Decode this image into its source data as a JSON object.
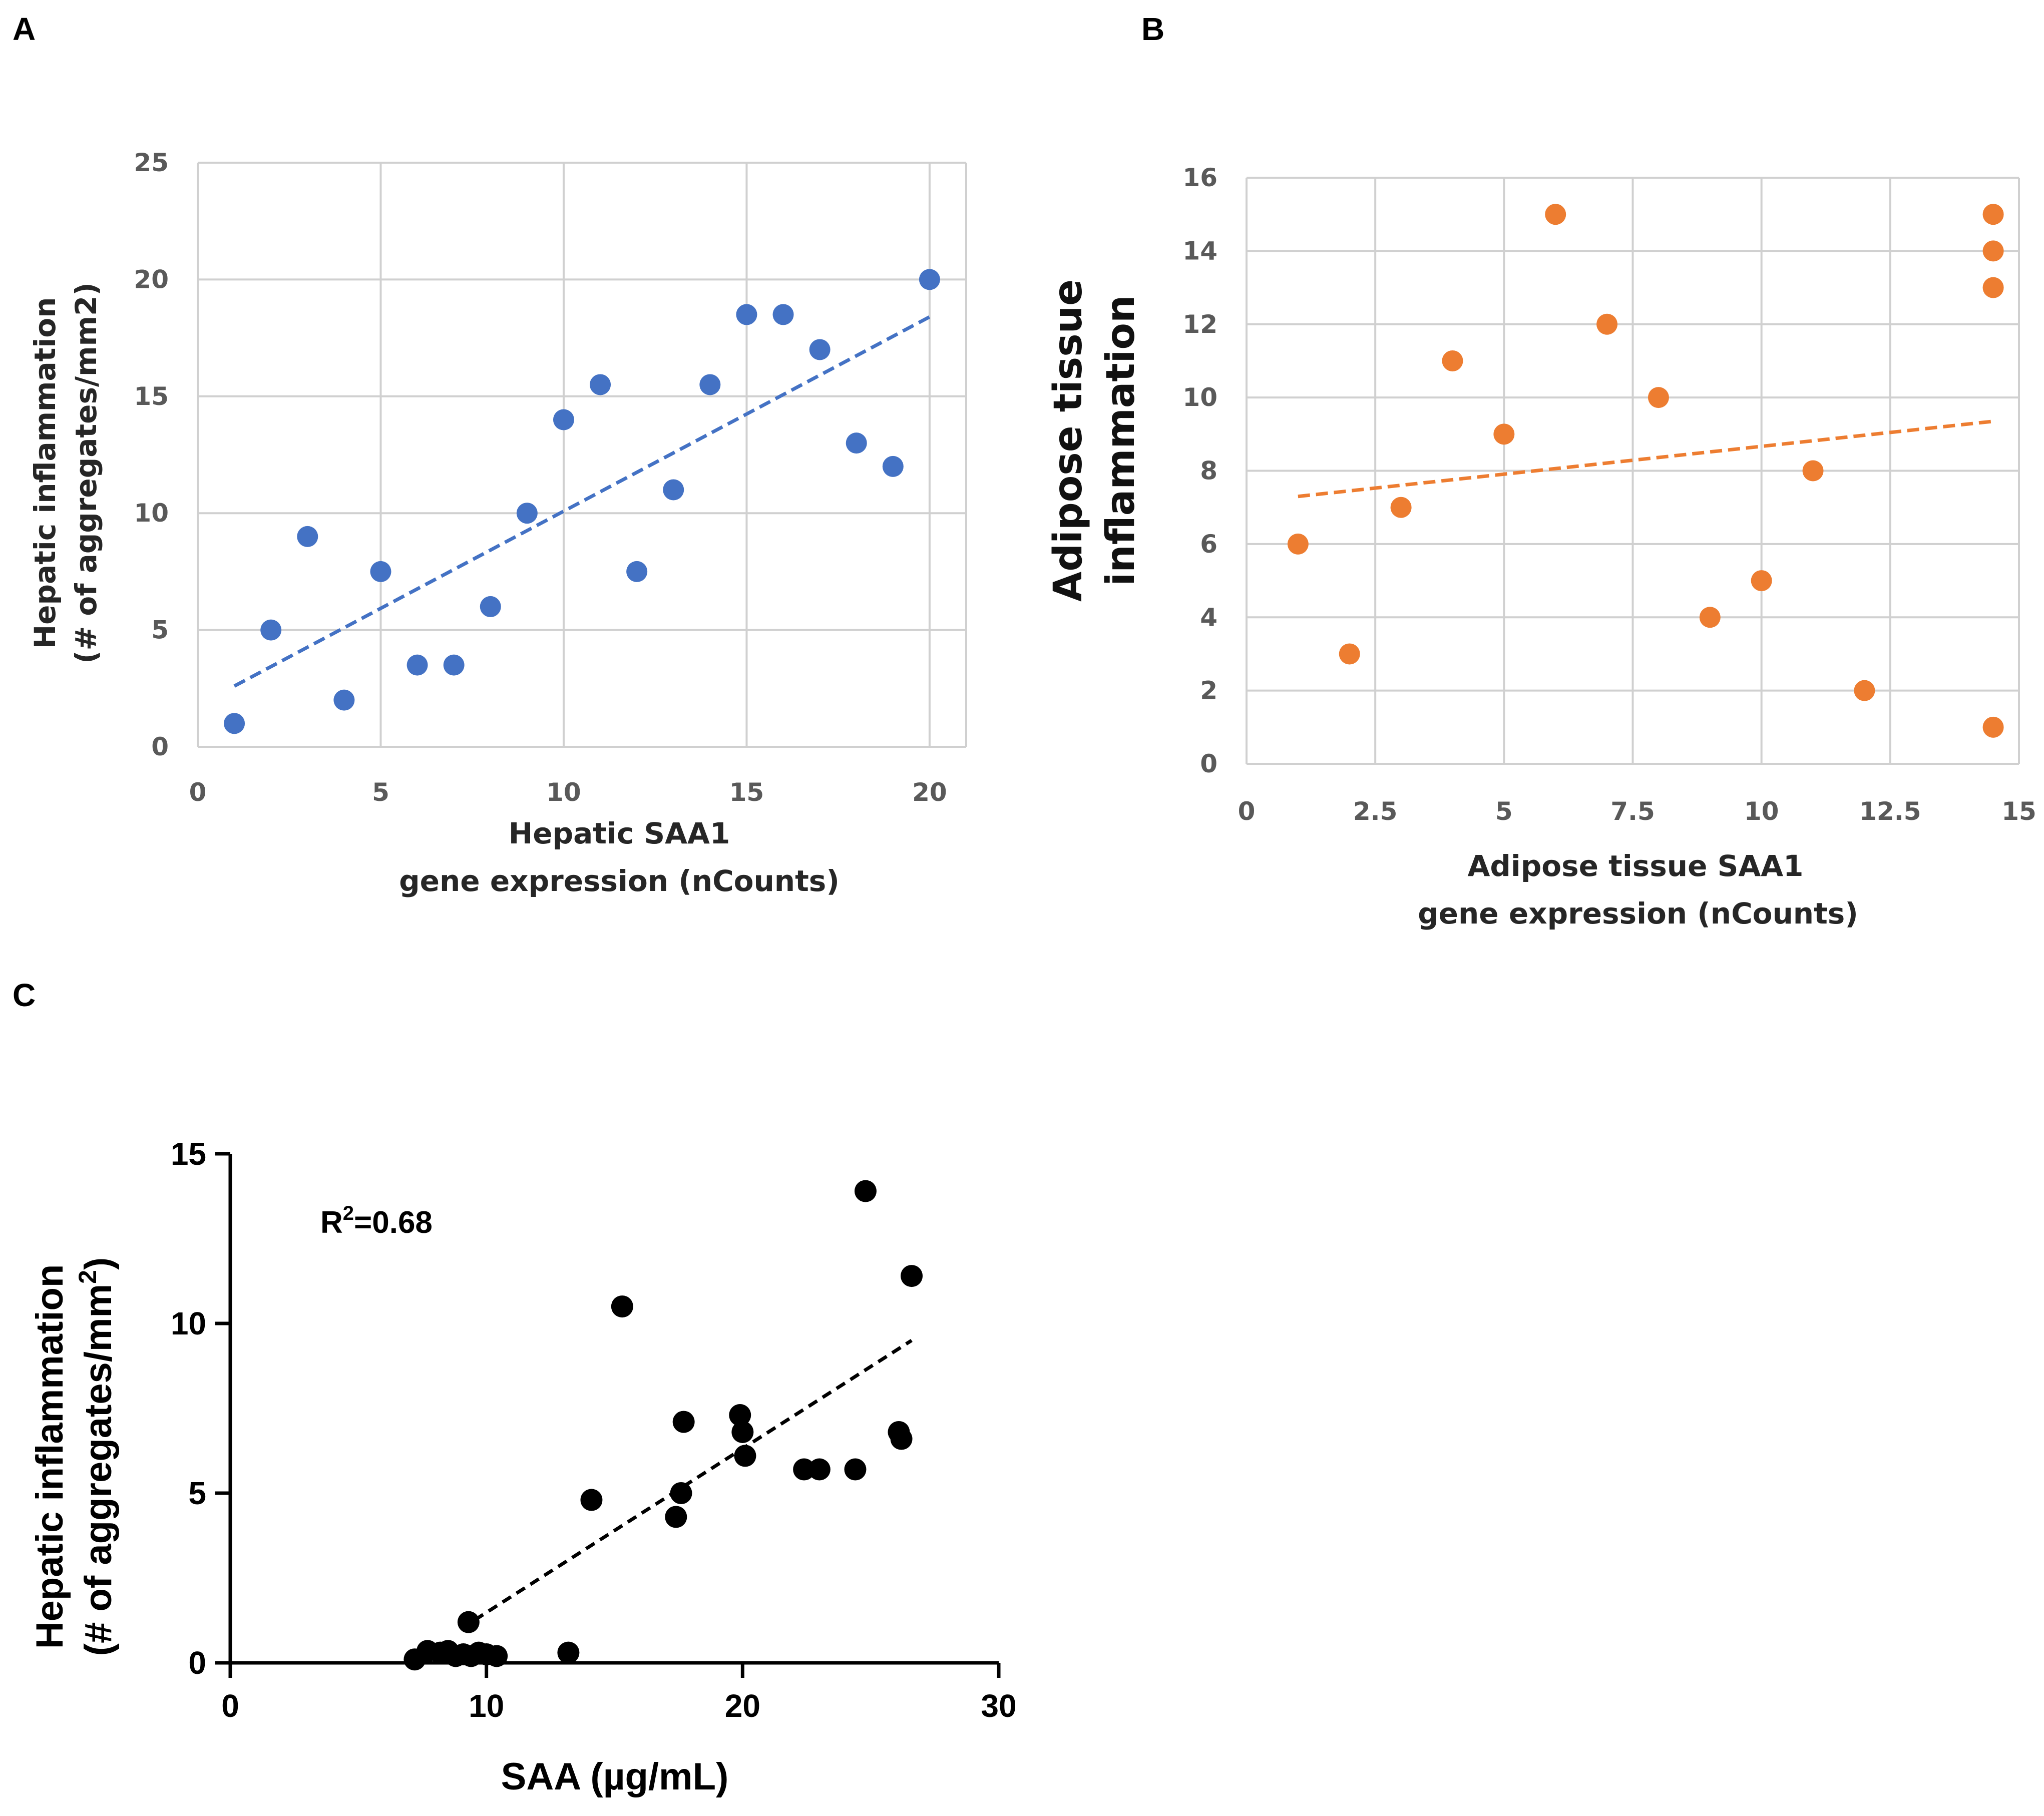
{
  "chart_data": [
    {
      "panel": "A",
      "type": "scatter",
      "xlabel": [
        "Hepatic SAA1",
        "gene expression (nCounts)"
      ],
      "ylabel": [
        "Hepatic inflammation",
        "(# of aggregates/mm2)"
      ],
      "xlim": [
        0,
        21
      ],
      "ylim": [
        0,
        25
      ],
      "xticks": [
        0,
        5,
        10,
        15,
        20
      ],
      "yticks": [
        0,
        5,
        10,
        15,
        20,
        25
      ],
      "grid": true,
      "color": "#4472C4",
      "points": [
        [
          1,
          1
        ],
        [
          2,
          5
        ],
        [
          3,
          9
        ],
        [
          4,
          2
        ],
        [
          5,
          7.5
        ],
        [
          6,
          3.5
        ],
        [
          7,
          3.5
        ],
        [
          8,
          6
        ],
        [
          9,
          10
        ],
        [
          10,
          14
        ],
        [
          11,
          15.5
        ],
        [
          12,
          7.5
        ],
        [
          13,
          11
        ],
        [
          14,
          15.5
        ],
        [
          15,
          18.5
        ],
        [
          16,
          18.5
        ],
        [
          17,
          17
        ],
        [
          18,
          13
        ],
        [
          19,
          12
        ],
        [
          20,
          20
        ]
      ],
      "trendline": [
        [
          1,
          2.6
        ],
        [
          20,
          18.4
        ]
      ]
    },
    {
      "panel": "B",
      "type": "scatter",
      "xlabel": [
        "Adipose tissue  SAA1",
        "gene expression (nCounts)"
      ],
      "ylabel": [
        "Adipose tissue",
        "inflammation"
      ],
      "xlim": [
        0,
        15
      ],
      "ylim": [
        0,
        16
      ],
      "xticks": [
        "0",
        "2.5",
        "5",
        "7.5",
        "10",
        "12.5",
        "15"
      ],
      "yticks": [
        0,
        2,
        4,
        6,
        8,
        10,
        12,
        14,
        16
      ],
      "grid": true,
      "color": "#ED7D31",
      "points": [
        [
          1,
          6
        ],
        [
          2,
          3
        ],
        [
          3,
          7
        ],
        [
          4,
          11
        ],
        [
          5,
          9
        ],
        [
          6,
          15
        ],
        [
          7,
          12
        ],
        [
          8,
          10
        ],
        [
          9,
          4
        ],
        [
          10,
          5
        ],
        [
          11,
          8
        ],
        [
          12,
          2
        ],
        [
          14.5,
          15
        ],
        [
          14.5,
          14
        ],
        [
          14.5,
          13
        ],
        [
          14.5,
          1
        ]
      ],
      "trendline": [
        [
          1,
          7.3
        ],
        [
          14.5,
          9.35
        ]
      ]
    },
    {
      "panel": "C",
      "type": "scatter",
      "xlabel": "SAA (µg/mL)",
      "ylabel": [
        "Hepatic inflammation",
        "(# of aggregates/mm",
        "2",
        ")"
      ],
      "annotation": {
        "prefix": "R",
        "sup": "2",
        "text": "=0.68"
      },
      "xlim": [
        0,
        30
      ],
      "ylim": [
        0,
        15
      ],
      "xticks": [
        0,
        10,
        20,
        30
      ],
      "yticks": [
        0,
        5,
        10,
        15
      ],
      "grid": false,
      "color": "#000000",
      "points": [
        [
          7.2,
          0.1
        ],
        [
          7.7,
          0.35
        ],
        [
          8.2,
          0.3
        ],
        [
          8.5,
          0.35
        ],
        [
          8.8,
          0.2
        ],
        [
          9.1,
          0.25
        ],
        [
          9.4,
          0.2
        ],
        [
          9.7,
          0.3
        ],
        [
          10.0,
          0.25
        ],
        [
          10.4,
          0.2
        ],
        [
          9.3,
          1.2
        ],
        [
          13.2,
          0.3
        ],
        [
          14.1,
          4.8
        ],
        [
          15.3,
          10.5
        ],
        [
          17.4,
          4.3
        ],
        [
          17.6,
          5.0
        ],
        [
          17.7,
          7.1
        ],
        [
          19.9,
          7.3
        ],
        [
          20.0,
          6.8
        ],
        [
          20.1,
          6.1
        ],
        [
          22.4,
          5.7
        ],
        [
          23.0,
          5.7
        ],
        [
          24.4,
          5.7
        ],
        [
          24.8,
          13.9
        ],
        [
          26.1,
          6.8
        ],
        [
          26.2,
          6.6
        ],
        [
          26.6,
          11.4
        ]
      ],
      "trendline": [
        [
          9.0,
          1.0
        ],
        [
          26.6,
          9.5
        ]
      ]
    }
  ],
  "panels": {
    "a": "A",
    "b": "B",
    "c": "C"
  }
}
